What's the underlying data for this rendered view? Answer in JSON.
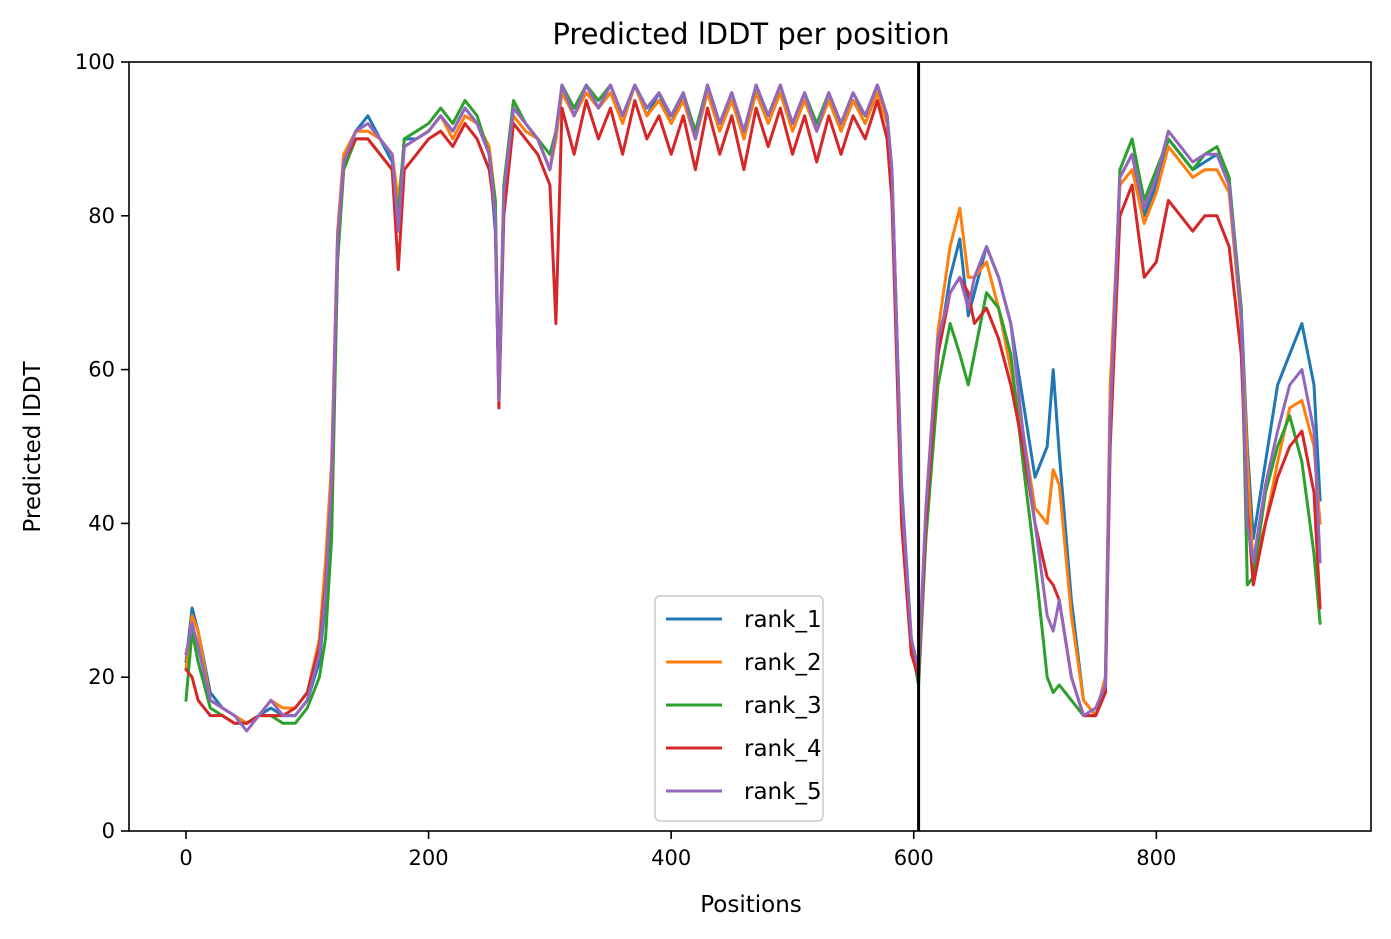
{
  "chart_data": {
    "type": "line",
    "title": "Predicted lDDT per position",
    "xlabel": "Positions",
    "ylabel": "Predicted lDDT",
    "xlim": [
      -47,
      977
    ],
    "ylim": [
      0,
      100
    ],
    "x_ticks": [
      0,
      200,
      400,
      600,
      800
    ],
    "y_ticks": [
      0,
      20,
      40,
      60,
      80,
      100
    ],
    "grid": false,
    "legend_position": "bottom-center",
    "vertical_line": {
      "x": 604,
      "color": "#000000"
    },
    "x": [
      0,
      5,
      10,
      20,
      30,
      40,
      50,
      60,
      70,
      80,
      90,
      100,
      110,
      115,
      120,
      125,
      130,
      140,
      150,
      160,
      170,
      175,
      180,
      190,
      200,
      210,
      220,
      230,
      240,
      250,
      255,
      258,
      262,
      270,
      280,
      290,
      300,
      305,
      310,
      320,
      330,
      340,
      350,
      360,
      370,
      380,
      390,
      400,
      410,
      420,
      430,
      440,
      450,
      460,
      470,
      480,
      490,
      500,
      510,
      520,
      530,
      540,
      550,
      560,
      570,
      578,
      582,
      590,
      598,
      604,
      610,
      620,
      630,
      638,
      645,
      650,
      660,
      670,
      680,
      690,
      700,
      710,
      715,
      720,
      730,
      740,
      750,
      758,
      762,
      770,
      780,
      790,
      800,
      810,
      820,
      830,
      840,
      850,
      860,
      870,
      875,
      880,
      890,
      900,
      910,
      920,
      930,
      935
    ],
    "series": [
      {
        "name": "rank_1",
        "color": "#1f77b4",
        "values": [
          22,
          29,
          26,
          18,
          16,
          15,
          14,
          15,
          16,
          15,
          15,
          17,
          22,
          30,
          44,
          76,
          87,
          91,
          93,
          90,
          87,
          80,
          90,
          90,
          91,
          93,
          91,
          94,
          92,
          88,
          78,
          57,
          82,
          94,
          92,
          90,
          86,
          90,
          97,
          93,
          97,
          94,
          96,
          93,
          97,
          93,
          96,
          92,
          96,
          90,
          97,
          92,
          96,
          90,
          97,
          93,
          96,
          92,
          96,
          91,
          96,
          91,
          95,
          93,
          97,
          93,
          86,
          45,
          25,
          20,
          40,
          62,
          72,
          77,
          67,
          70,
          76,
          72,
          66,
          56,
          46,
          50,
          60,
          49,
          30,
          17,
          15,
          20,
          55,
          85,
          88,
          80,
          84,
          90,
          88,
          86,
          87,
          88,
          84,
          68,
          50,
          38,
          48,
          58,
          62,
          66,
          58,
          43
        ]
      },
      {
        "name": "rank_2",
        "color": "#ff7f0e",
        "values": [
          21,
          28,
          26,
          17,
          16,
          15,
          14,
          15,
          17,
          16,
          16,
          18,
          25,
          35,
          48,
          78,
          88,
          91,
          91,
          90,
          88,
          82,
          89,
          90,
          91,
          93,
          90,
          93,
          92,
          89,
          82,
          56,
          82,
          93,
          91,
          90,
          86,
          90,
          96,
          93,
          96,
          94,
          96,
          92,
          97,
          93,
          95,
          92,
          95,
          90,
          96,
          91,
          95,
          90,
          96,
          92,
          96,
          91,
          95,
          91,
          95,
          91,
          95,
          92,
          96,
          92,
          85,
          42,
          25,
          20,
          42,
          65,
          76,
          81,
          72,
          72,
          74,
          68,
          60,
          52,
          42,
          40,
          47,
          45,
          28,
          17,
          15,
          20,
          58,
          84,
          86,
          79,
          83,
          89,
          87,
          85,
          86,
          86,
          83,
          66,
          48,
          34,
          40,
          48,
          55,
          56,
          50,
          40
        ]
      },
      {
        "name": "rank_3",
        "color": "#2ca02c",
        "values": [
          17,
          26,
          22,
          16,
          15,
          14,
          14,
          15,
          15,
          14,
          14,
          16,
          20,
          25,
          38,
          74,
          86,
          90,
          90,
          88,
          86,
          80,
          90,
          91,
          92,
          94,
          92,
          95,
          93,
          88,
          82,
          56,
          84,
          95,
          92,
          90,
          88,
          91,
          97,
          94,
          97,
          95,
          97,
          93,
          97,
          94,
          96,
          93,
          96,
          91,
          97,
          92,
          96,
          91,
          97,
          93,
          97,
          92,
          96,
          92,
          96,
          92,
          96,
          93,
          97,
          93,
          86,
          44,
          24,
          19,
          38,
          58,
          66,
          62,
          58,
          62,
          70,
          68,
          62,
          48,
          35,
          20,
          18,
          19,
          17,
          15,
          15,
          18,
          52,
          86,
          90,
          82,
          86,
          90,
          88,
          86,
          88,
          89,
          85,
          68,
          32,
          33,
          44,
          50,
          54,
          48,
          36,
          27
        ]
      },
      {
        "name": "rank_4",
        "color": "#d62728",
        "values": [
          21,
          20,
          17,
          15,
          15,
          14,
          14,
          15,
          15,
          15,
          16,
          18,
          24,
          32,
          45,
          77,
          87,
          90,
          90,
          88,
          86,
          73,
          86,
          88,
          90,
          91,
          89,
          92,
          90,
          86,
          80,
          55,
          80,
          92,
          90,
          88,
          84,
          66,
          94,
          88,
          95,
          90,
          94,
          88,
          95,
          90,
          93,
          88,
          93,
          86,
          94,
          88,
          93,
          86,
          94,
          89,
          94,
          88,
          93,
          87,
          93,
          88,
          93,
          90,
          95,
          90,
          82,
          40,
          23,
          20,
          40,
          62,
          70,
          72,
          70,
          66,
          68,
          64,
          58,
          50,
          40,
          33,
          32,
          30,
          20,
          15,
          15,
          18,
          50,
          80,
          84,
          72,
          74,
          82,
          80,
          78,
          80,
          80,
          76,
          62,
          42,
          32,
          40,
          46,
          50,
          52,
          44,
          29
        ]
      },
      {
        "name": "rank_5",
        "color": "#9467bd",
        "values": [
          23,
          27,
          24,
          17,
          16,
          15,
          13,
          15,
          17,
          15,
          15,
          17,
          23,
          31,
          46,
          77,
          87,
          91,
          92,
          90,
          88,
          78,
          89,
          90,
          91,
          93,
          91,
          94,
          92,
          88,
          80,
          56,
          83,
          94,
          92,
          90,
          86,
          91,
          97,
          93,
          97,
          94,
          97,
          93,
          97,
          94,
          96,
          93,
          96,
          90,
          97,
          92,
          96,
          91,
          97,
          93,
          97,
          92,
          96,
          91,
          96,
          92,
          96,
          93,
          97,
          93,
          86,
          44,
          25,
          21,
          42,
          64,
          70,
          72,
          68,
          72,
          76,
          72,
          66,
          52,
          40,
          28,
          26,
          30,
          20,
          15,
          16,
          19,
          54,
          85,
          88,
          81,
          85,
          91,
          89,
          87,
          88,
          88,
          84,
          67,
          40,
          35,
          45,
          52,
          58,
          60,
          52,
          35
        ]
      }
    ]
  }
}
